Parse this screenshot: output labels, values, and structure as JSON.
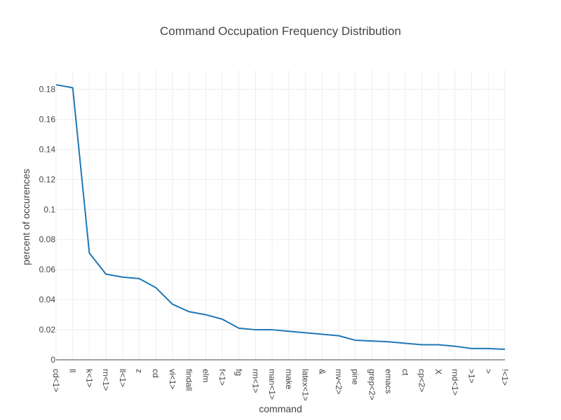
{
  "chart_data": {
    "type": "line",
    "title": "Command Occupation Frequency Distribution",
    "xlabel": "command",
    "ylabel": "percent of occurences",
    "categories": [
      "cd<1>",
      "ll",
      "k<1>",
      "rn<1>",
      "ll<1>",
      "z",
      "cd",
      "vi<1>",
      "findall",
      "elm",
      "f<1>",
      "fg",
      "rm<1>",
      "man<1>",
      "make",
      "latex<1>",
      "&",
      "mv<2>",
      "pine",
      "grep<2>",
      "emacs",
      "ct",
      "cp<2>",
      "X",
      "rnd<1>",
      ">1>",
      ">",
      "!<1>"
    ],
    "values": [
      0.183,
      0.181,
      0.071,
      0.057,
      0.055,
      0.054,
      0.048,
      0.037,
      0.032,
      0.03,
      0.027,
      0.021,
      0.02,
      0.02,
      0.019,
      0.018,
      0.017,
      0.016,
      0.013,
      0.0125,
      0.012,
      0.011,
      0.01,
      0.01,
      0.009,
      0.0075,
      0.0075,
      0.007
    ],
    "ylim": [
      0,
      0.18
    ],
    "yticks": [
      0,
      0.02,
      0.04,
      0.06,
      0.08,
      0.1,
      0.12,
      0.14,
      0.16,
      0.18
    ],
    "ytick_labels": [
      "0",
      "0.02",
      "0.04",
      "0.06",
      "0.08",
      "0.1",
      "0.12",
      "0.14",
      "0.16",
      "0.18"
    ],
    "grid": true,
    "legend": "none",
    "line_color": "#1f77b4"
  }
}
